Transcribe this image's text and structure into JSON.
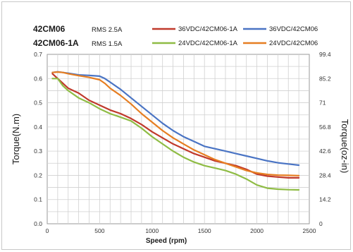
{
  "header": {
    "model_1": "42CM06",
    "rms_1": "RMS 2.5A",
    "model_2": "42CM06-1A",
    "rms_2": "RMS 1.5A"
  },
  "chart_data": {
    "type": "line",
    "title": "",
    "xlabel": "Speed (rpm)",
    "ylabel": "Torque(N.m)",
    "ylabel_right": "Torque(oz-in)",
    "xlim": [
      0,
      2500
    ],
    "ylim": [
      0,
      0.7
    ],
    "ylim_right": [
      0,
      99.4
    ],
    "x_ticks": [
      "0",
      "500",
      "1000",
      "1500",
      "2000",
      "2500"
    ],
    "y_ticks": [
      "0.0",
      "0.1",
      "0.2",
      "0.3",
      "0.4",
      "0.5",
      "0.6",
      "0.7"
    ],
    "y_ticks_right": [
      "0",
      "14.2",
      "28.4",
      "42.6",
      "56.8",
      "71",
      "85.2",
      "99.4"
    ],
    "grid": true,
    "legend_position": "top-right",
    "series": [
      {
        "name": "36VDC/42CM06-1A",
        "color": "#c0392b",
        "points": [
          [
            50,
            0.62
          ],
          [
            100,
            0.6
          ],
          [
            150,
            0.58
          ],
          [
            200,
            0.56
          ],
          [
            300,
            0.54
          ],
          [
            400,
            0.51
          ],
          [
            500,
            0.49
          ],
          [
            600,
            0.47
          ],
          [
            700,
            0.455
          ],
          [
            800,
            0.435
          ],
          [
            900,
            0.41
          ],
          [
            1000,
            0.38
          ],
          [
            1100,
            0.355
          ],
          [
            1200,
            0.33
          ],
          [
            1300,
            0.31
          ],
          [
            1400,
            0.29
          ],
          [
            1500,
            0.275
          ],
          [
            1600,
            0.26
          ],
          [
            1700,
            0.25
          ],
          [
            1800,
            0.24
          ],
          [
            1900,
            0.225
          ],
          [
            2000,
            0.205
          ],
          [
            2100,
            0.197
          ],
          [
            2200,
            0.193
          ],
          [
            2300,
            0.19
          ],
          [
            2400,
            0.19
          ]
        ]
      },
      {
        "name": "36VDC/42CM06",
        "color": "#4a74c4",
        "points": [
          [
            50,
            0.625
          ],
          [
            100,
            0.628
          ],
          [
            150,
            0.625
          ],
          [
            200,
            0.622
          ],
          [
            300,
            0.615
          ],
          [
            400,
            0.613
          ],
          [
            500,
            0.61
          ],
          [
            550,
            0.6
          ],
          [
            600,
            0.585
          ],
          [
            700,
            0.555
          ],
          [
            800,
            0.52
          ],
          [
            900,
            0.485
          ],
          [
            1000,
            0.45
          ],
          [
            1100,
            0.415
          ],
          [
            1200,
            0.385
          ],
          [
            1300,
            0.36
          ],
          [
            1400,
            0.34
          ],
          [
            1500,
            0.32
          ],
          [
            1600,
            0.31
          ],
          [
            1700,
            0.3
          ],
          [
            1800,
            0.29
          ],
          [
            1900,
            0.28
          ],
          [
            2000,
            0.27
          ],
          [
            2100,
            0.26
          ],
          [
            2200,
            0.252
          ],
          [
            2300,
            0.247
          ],
          [
            2400,
            0.242
          ]
        ]
      },
      {
        "name": "24VDC/42CM06-1A",
        "color": "#8fbc45",
        "points": [
          [
            50,
            0.6
          ],
          [
            100,
            0.6
          ],
          [
            150,
            0.57
          ],
          [
            200,
            0.55
          ],
          [
            300,
            0.52
          ],
          [
            400,
            0.5
          ],
          [
            500,
            0.475
          ],
          [
            600,
            0.455
          ],
          [
            700,
            0.44
          ],
          [
            800,
            0.425
          ],
          [
            900,
            0.395
          ],
          [
            1000,
            0.36
          ],
          [
            1100,
            0.33
          ],
          [
            1200,
            0.3
          ],
          [
            1300,
            0.275
          ],
          [
            1400,
            0.255
          ],
          [
            1500,
            0.24
          ],
          [
            1600,
            0.23
          ],
          [
            1700,
            0.22
          ],
          [
            1800,
            0.205
          ],
          [
            1900,
            0.185
          ],
          [
            2000,
            0.16
          ],
          [
            2100,
            0.147
          ],
          [
            2200,
            0.143
          ],
          [
            2300,
            0.141
          ],
          [
            2400,
            0.14
          ]
        ]
      },
      {
        "name": "24VDC/42CM06",
        "color": "#e67e22",
        "points": [
          [
            50,
            0.625
          ],
          [
            100,
            0.627
          ],
          [
            150,
            0.625
          ],
          [
            200,
            0.62
          ],
          [
            300,
            0.612
          ],
          [
            400,
            0.605
          ],
          [
            500,
            0.595
          ],
          [
            550,
            0.58
          ],
          [
            600,
            0.56
          ],
          [
            700,
            0.53
          ],
          [
            800,
            0.495
          ],
          [
            900,
            0.455
          ],
          [
            1000,
            0.42
          ],
          [
            1100,
            0.385
          ],
          [
            1200,
            0.355
          ],
          [
            1300,
            0.33
          ],
          [
            1400,
            0.305
          ],
          [
            1500,
            0.285
          ],
          [
            1600,
            0.265
          ],
          [
            1700,
            0.25
          ],
          [
            1800,
            0.235
          ],
          [
            1900,
            0.22
          ],
          [
            2000,
            0.21
          ],
          [
            2100,
            0.204
          ],
          [
            2200,
            0.201
          ],
          [
            2300,
            0.2
          ],
          [
            2400,
            0.199
          ]
        ]
      }
    ]
  }
}
